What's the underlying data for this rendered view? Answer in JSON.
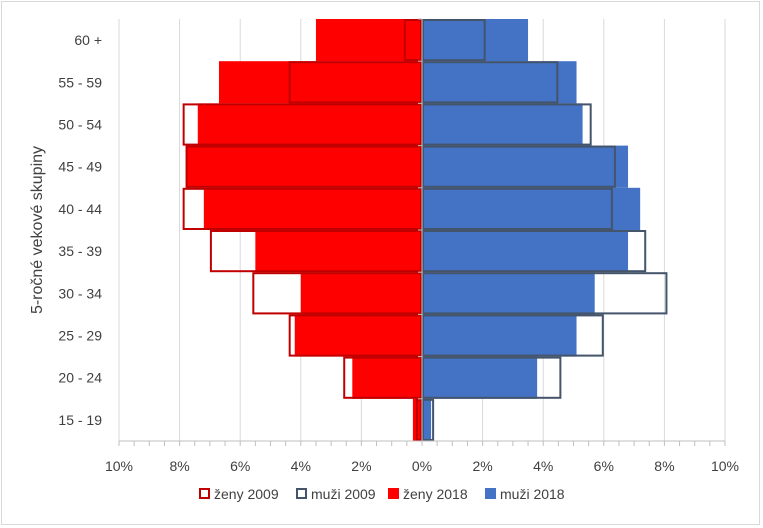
{
  "chart_data": {
    "type": "bar",
    "orientation": "horizontal",
    "subtype": "population-pyramid",
    "title": "",
    "ylabel": "5-ročné vekové skupiny",
    "xlabel": "",
    "categories": [
      "15 - 19",
      "20 - 24",
      "25 - 29",
      "30 - 34",
      "35 - 39",
      "40 - 44",
      "45 - 49",
      "50 - 54",
      "55 - 59",
      "60 +"
    ],
    "x_ticks": [
      "10%",
      "8%",
      "6%",
      "4%",
      "2%",
      "0%",
      "2%",
      "4%",
      "6%",
      "8%",
      "10%"
    ],
    "xlim": [
      -10,
      10
    ],
    "gridlines": true,
    "legend_position": "bottom",
    "series": [
      {
        "name": "ženy 2009",
        "side": "left",
        "style": "outline",
        "color": "#c00000",
        "values": [
          0.2,
          2.6,
          4.4,
          5.6,
          7.0,
          7.9,
          7.8,
          7.9,
          4.4,
          0.6
        ]
      },
      {
        "name": "muži 2009",
        "side": "right",
        "style": "outline",
        "color": "#44546a",
        "values": [
          0.4,
          4.6,
          6.0,
          8.1,
          7.4,
          6.3,
          6.4,
          5.6,
          4.5,
          2.1
        ]
      },
      {
        "name": "ženy 2018",
        "side": "left",
        "style": "fill",
        "color": "#ff0000",
        "values": [
          0.3,
          2.3,
          4.2,
          4.0,
          5.5,
          7.2,
          7.8,
          7.4,
          6.7,
          3.5
        ]
      },
      {
        "name": "muži 2018",
        "side": "right",
        "style": "fill",
        "color": "#4472c4",
        "values": [
          0.3,
          3.8,
          5.1,
          5.7,
          6.8,
          7.2,
          6.8,
          5.3,
          5.1,
          3.5
        ]
      }
    ]
  }
}
